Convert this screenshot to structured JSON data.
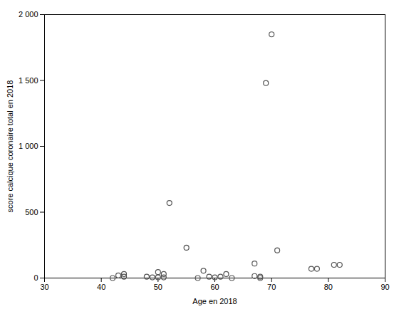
{
  "chart_data": {
    "type": "scatter",
    "x": [
      42,
      43,
      44,
      44,
      48,
      49,
      50,
      50,
      51,
      51,
      52,
      55,
      57,
      58,
      59,
      60,
      61,
      62,
      63,
      67,
      67,
      68,
      68,
      69,
      70,
      71,
      77,
      78,
      81,
      82
    ],
    "values": [
      0,
      20,
      30,
      10,
      10,
      5,
      5,
      45,
      30,
      5,
      570,
      230,
      0,
      55,
      10,
      5,
      10,
      30,
      0,
      110,
      15,
      0,
      10,
      1480,
      1850,
      210,
      70,
      70,
      100,
      100
    ],
    "xlim": [
      30,
      90
    ],
    "ylim": [
      0,
      2000
    ],
    "xticks": [
      30,
      40,
      50,
      60,
      70,
      80,
      90
    ],
    "yticks": [
      0,
      500,
      {
        "value": 1000,
        "label": "1 000"
      },
      {
        "value": 1500,
        "label": "1 500"
      },
      {
        "value": 2000,
        "label": "2 000"
      }
    ],
    "xlabel": "Age en 2018",
    "ylabel": "score calcique coronaire total en 2018",
    "color": "#555555",
    "marker": "open_circle",
    "grid": false
  }
}
